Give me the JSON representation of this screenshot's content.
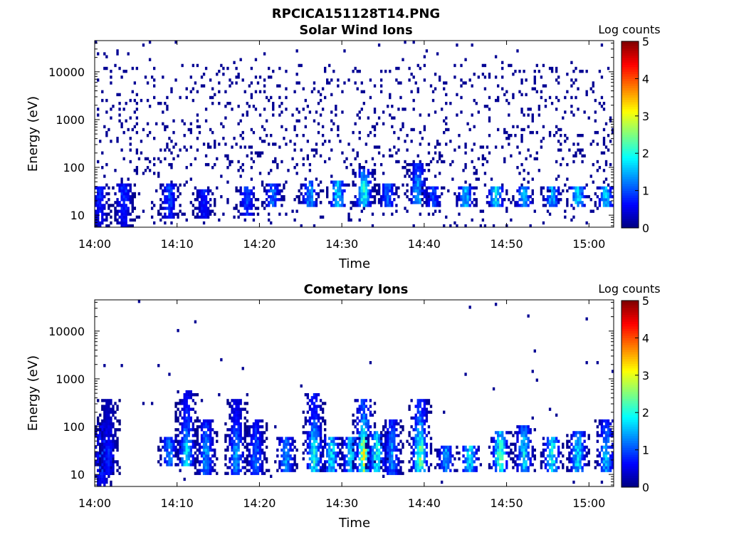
{
  "figure_title": "RPCICA151128T14.PNG",
  "colorscale": [
    "#00007f",
    "#0000ff",
    "#007fff",
    "#00ffff",
    "#7fff7f",
    "#ffff00",
    "#ff7f00",
    "#ff0000",
    "#7f0000"
  ],
  "chart_data": [
    {
      "type": "heatmap",
      "title": "Solar Wind Ions",
      "xlabel": "Time",
      "ylabel": "Energy (eV)",
      "x_ticks": [
        "14:00",
        "14:10",
        "14:20",
        "14:30",
        "14:40",
        "14:50",
        "15:00"
      ],
      "y_ticks": [
        "10",
        "100",
        "1000",
        "10000"
      ],
      "y_scale": "log",
      "ylim": [
        5.6,
        45000
      ],
      "xlim": [
        "14:00",
        "15:03"
      ],
      "colorbar": {
        "title": "Log counts",
        "ticks": [
          "0",
          "1",
          "2",
          "3",
          "4",
          "5"
        ],
        "range": [
          0,
          5
        ]
      },
      "grid": false,
      "bursts": [
        {
          "t": 0.5,
          "emin": 5.6,
          "emax": 40,
          "c": 0.8
        },
        {
          "t": 3.5,
          "emin": 5.6,
          "emax": 45,
          "c": 0.9
        },
        {
          "t": 9.0,
          "emin": 8,
          "emax": 45,
          "c": 1.0
        },
        {
          "t": 13.0,
          "emin": 8,
          "emax": 35,
          "c": 0.8
        },
        {
          "t": 18.5,
          "emin": 10,
          "emax": 40,
          "c": 1.0
        },
        {
          "t": 21.5,
          "emin": 15,
          "emax": 45,
          "c": 1.2
        },
        {
          "t": 26.0,
          "emin": 15,
          "emax": 50,
          "c": 1.4
        },
        {
          "t": 29.5,
          "emin": 15,
          "emax": 50,
          "c": 1.8
        },
        {
          "t": 32.5,
          "emin": 15,
          "emax": 90,
          "c": 2.0
        },
        {
          "t": 35.5,
          "emin": 15,
          "emax": 45,
          "c": 1.2
        },
        {
          "t": 39.0,
          "emin": 18,
          "emax": 120,
          "c": 1.6
        },
        {
          "t": 41.0,
          "emin": 15,
          "emax": 40,
          "c": 1.0
        },
        {
          "t": 45.0,
          "emin": 15,
          "emax": 40,
          "c": 1.6
        },
        {
          "t": 48.5,
          "emin": 15,
          "emax": 40,
          "c": 1.8
        },
        {
          "t": 52.0,
          "emin": 15,
          "emax": 40,
          "c": 1.6
        },
        {
          "t": 55.5,
          "emin": 15,
          "emax": 40,
          "c": 1.5
        },
        {
          "t": 58.5,
          "emin": 15,
          "emax": 40,
          "c": 1.7
        },
        {
          "t": 62.0,
          "emin": 15,
          "emax": 40,
          "c": 1.6
        }
      ]
    },
    {
      "type": "heatmap",
      "title": "Cometary Ions",
      "xlabel": "Time",
      "ylabel": "Energy (eV)",
      "x_ticks": [
        "14:00",
        "14:10",
        "14:20",
        "14:30",
        "14:40",
        "14:50",
        "15:00"
      ],
      "y_ticks": [
        "10",
        "100",
        "1000",
        "10000"
      ],
      "y_scale": "log",
      "ylim": [
        5.6,
        45000
      ],
      "xlim": [
        "14:00",
        "15:03"
      ],
      "colorbar": {
        "title": "Log counts",
        "ticks": [
          "0",
          "1",
          "2",
          "3",
          "4",
          "5"
        ],
        "range": [
          0,
          5
        ]
      },
      "grid": false,
      "bursts": [
        {
          "t": 0.8,
          "emin": 5.6,
          "emax": 120,
          "c": 1.0
        },
        {
          "t": 1.5,
          "emin": 10,
          "emax": 400,
          "c": 0.8
        },
        {
          "t": 9.0,
          "emin": 15,
          "emax": 60,
          "c": 1.3
        },
        {
          "t": 11.0,
          "emin": 15,
          "emax": 600,
          "c": 1.8
        },
        {
          "t": 13.5,
          "emin": 10,
          "emax": 150,
          "c": 1.4
        },
        {
          "t": 17.0,
          "emin": 10,
          "emax": 400,
          "c": 1.5
        },
        {
          "t": 19.5,
          "emin": 10,
          "emax": 150,
          "c": 1.2
        },
        {
          "t": 23.0,
          "emin": 12,
          "emax": 60,
          "c": 1.4
        },
        {
          "t": 26.5,
          "emin": 12,
          "emax": 500,
          "c": 2.0
        },
        {
          "t": 28.5,
          "emin": 12,
          "emax": 60,
          "c": 1.8
        },
        {
          "t": 31.0,
          "emin": 12,
          "emax": 60,
          "c": 1.8
        },
        {
          "t": 32.5,
          "emin": 12,
          "emax": 400,
          "c": 2.8
        },
        {
          "t": 34.0,
          "emin": 12,
          "emax": 80,
          "c": 2.0
        },
        {
          "t": 36.0,
          "emin": 10,
          "emax": 150,
          "c": 1.4
        },
        {
          "t": 39.5,
          "emin": 12,
          "emax": 400,
          "c": 2.4
        },
        {
          "t": 42.5,
          "emin": 12,
          "emax": 40,
          "c": 1.4
        },
        {
          "t": 45.5,
          "emin": 12,
          "emax": 40,
          "c": 1.8
        },
        {
          "t": 49.0,
          "emin": 12,
          "emax": 80,
          "c": 2.2
        },
        {
          "t": 52.0,
          "emin": 12,
          "emax": 100,
          "c": 1.8
        },
        {
          "t": 55.5,
          "emin": 12,
          "emax": 60,
          "c": 2.0
        },
        {
          "t": 58.5,
          "emin": 12,
          "emax": 80,
          "c": 1.8
        },
        {
          "t": 62.0,
          "emin": 12,
          "emax": 150,
          "c": 1.6
        }
      ]
    }
  ]
}
